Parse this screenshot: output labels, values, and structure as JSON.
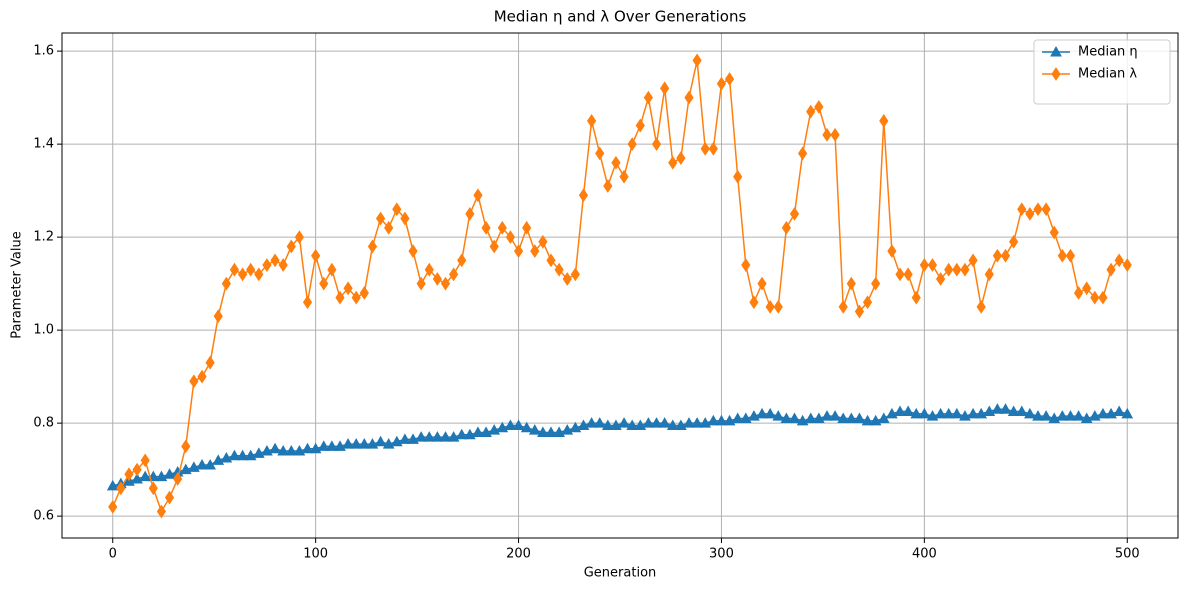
{
  "chart_data": {
    "type": "line",
    "title": "Median η and λ Over Generations",
    "x_label": "Generation",
    "y_label": "Parameter Value",
    "x": [
      0,
      4,
      8,
      12,
      16,
      20,
      24,
      28,
      32,
      36,
      40,
      44,
      48,
      52,
      56,
      60,
      64,
      68,
      72,
      76,
      80,
      84,
      88,
      92,
      96,
      100,
      104,
      108,
      112,
      116,
      120,
      124,
      128,
      132,
      136,
      140,
      144,
      148,
      152,
      156,
      160,
      164,
      168,
      172,
      176,
      180,
      184,
      188,
      192,
      196,
      200,
      204,
      208,
      212,
      216,
      220,
      224,
      228,
      232,
      236,
      240,
      244,
      248,
      252,
      256,
      260,
      264,
      268,
      272,
      276,
      280,
      284,
      288,
      292,
      296,
      300,
      304,
      308,
      312,
      316,
      320,
      324,
      328,
      332,
      336,
      340,
      344,
      348,
      352,
      356,
      360,
      364,
      368,
      372,
      376,
      380,
      384,
      388,
      392,
      396,
      400,
      404,
      408,
      412,
      416,
      420,
      424,
      428,
      432,
      436,
      440,
      444,
      448,
      452,
      456,
      460,
      464,
      468,
      472,
      476,
      480,
      484,
      488,
      492,
      496,
      500
    ],
    "series": [
      {
        "name": "Median η",
        "color": "#1f77b4",
        "marker": "triangle",
        "values": [
          0.665,
          0.67,
          0.675,
          0.68,
          0.685,
          0.685,
          0.685,
          0.69,
          0.695,
          0.7,
          0.705,
          0.71,
          0.71,
          0.72,
          0.725,
          0.73,
          0.73,
          0.73,
          0.735,
          0.74,
          0.745,
          0.74,
          0.74,
          0.74,
          0.745,
          0.745,
          0.75,
          0.75,
          0.75,
          0.755,
          0.755,
          0.755,
          0.755,
          0.76,
          0.755,
          0.76,
          0.765,
          0.765,
          0.77,
          0.77,
          0.77,
          0.77,
          0.77,
          0.775,
          0.775,
          0.78,
          0.78,
          0.785,
          0.79,
          0.795,
          0.795,
          0.79,
          0.785,
          0.78,
          0.78,
          0.78,
          0.785,
          0.79,
          0.795,
          0.8,
          0.8,
          0.795,
          0.795,
          0.8,
          0.795,
          0.795,
          0.8,
          0.8,
          0.8,
          0.795,
          0.795,
          0.8,
          0.8,
          0.8,
          0.805,
          0.805,
          0.805,
          0.81,
          0.81,
          0.815,
          0.82,
          0.82,
          0.815,
          0.81,
          0.81,
          0.805,
          0.81,
          0.81,
          0.815,
          0.815,
          0.81,
          0.81,
          0.81,
          0.805,
          0.805,
          0.81,
          0.82,
          0.825,
          0.825,
          0.82,
          0.82,
          0.815,
          0.82,
          0.82,
          0.82,
          0.815,
          0.82,
          0.82,
          0.825,
          0.83,
          0.83,
          0.825,
          0.825,
          0.82,
          0.815,
          0.815,
          0.81,
          0.815,
          0.815,
          0.815,
          0.81,
          0.815,
          0.82,
          0.82,
          0.825,
          0.82
        ]
      },
      {
        "name": "Median λ",
        "color": "#ff7f0e",
        "marker": "diamond",
        "values": [
          0.62,
          0.66,
          0.69,
          0.7,
          0.72,
          0.66,
          0.61,
          0.64,
          0.68,
          0.75,
          0.89,
          0.9,
          0.93,
          1.03,
          1.1,
          1.13,
          1.12,
          1.13,
          1.12,
          1.14,
          1.15,
          1.14,
          1.18,
          1.2,
          1.06,
          1.16,
          1.1,
          1.13,
          1.07,
          1.09,
          1.07,
          1.08,
          1.18,
          1.24,
          1.22,
          1.26,
          1.24,
          1.17,
          1.1,
          1.13,
          1.11,
          1.1,
          1.12,
          1.15,
          1.25,
          1.29,
          1.22,
          1.18,
          1.22,
          1.2,
          1.17,
          1.22,
          1.17,
          1.19,
          1.15,
          1.13,
          1.11,
          1.12,
          1.29,
          1.45,
          1.38,
          1.31,
          1.36,
          1.33,
          1.4,
          1.44,
          1.5,
          1.4,
          1.52,
          1.36,
          1.37,
          1.5,
          1.58,
          1.39,
          1.39,
          1.53,
          1.54,
          1.33,
          1.14,
          1.06,
          1.1,
          1.05,
          1.05,
          1.22,
          1.25,
          1.38,
          1.47,
          1.48,
          1.42,
          1.42,
          1.05,
          1.1,
          1.04,
          1.06,
          1.1,
          1.45,
          1.17,
          1.12,
          1.12,
          1.07,
          1.14,
          1.14,
          1.11,
          1.13,
          1.13,
          1.13,
          1.15,
          1.05,
          1.12,
          1.16,
          1.16,
          1.19,
          1.26,
          1.25,
          1.26,
          1.26,
          1.21,
          1.16,
          1.16,
          1.08,
          1.09,
          1.07,
          1.07,
          1.13,
          1.15,
          1.14
        ]
      }
    ],
    "xlim": [
      -25,
      525
    ],
    "ylim": [
      0.553,
      1.639
    ],
    "xticks": [
      0,
      100,
      200,
      300,
      400,
      500
    ],
    "yticks": [
      0.6,
      0.8,
      {
        "value": 1,
        "label": "1.0"
      },
      1.2,
      1.4,
      1.6
    ],
    "grid": true,
    "legend": "upper right"
  }
}
